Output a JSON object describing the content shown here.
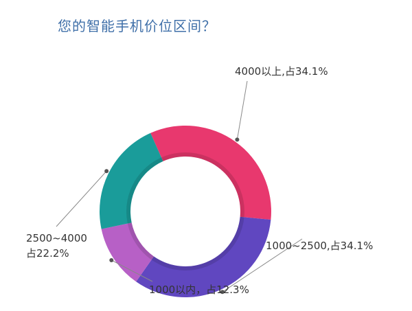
{
  "title": "您的智能手机价位区间？",
  "chart_data": {
    "type": "pie",
    "title": "您的智能手机价位区间？",
    "donut": true,
    "slices": [
      {
        "label": "4000以上,占34.1%",
        "value": 34.1,
        "color": "#e8386e"
      },
      {
        "label": "1000~2500,占34.1%",
        "value": 34.1,
        "color": "#6047c0"
      },
      {
        "label": "1000以内，占12.3%",
        "value": 12.3,
        "color": "#b760c6"
      },
      {
        "label_lines": [
          "2500~4000",
          "占22.2%"
        ],
        "value": 22.2,
        "color": "#1a9c9a"
      }
    ]
  }
}
